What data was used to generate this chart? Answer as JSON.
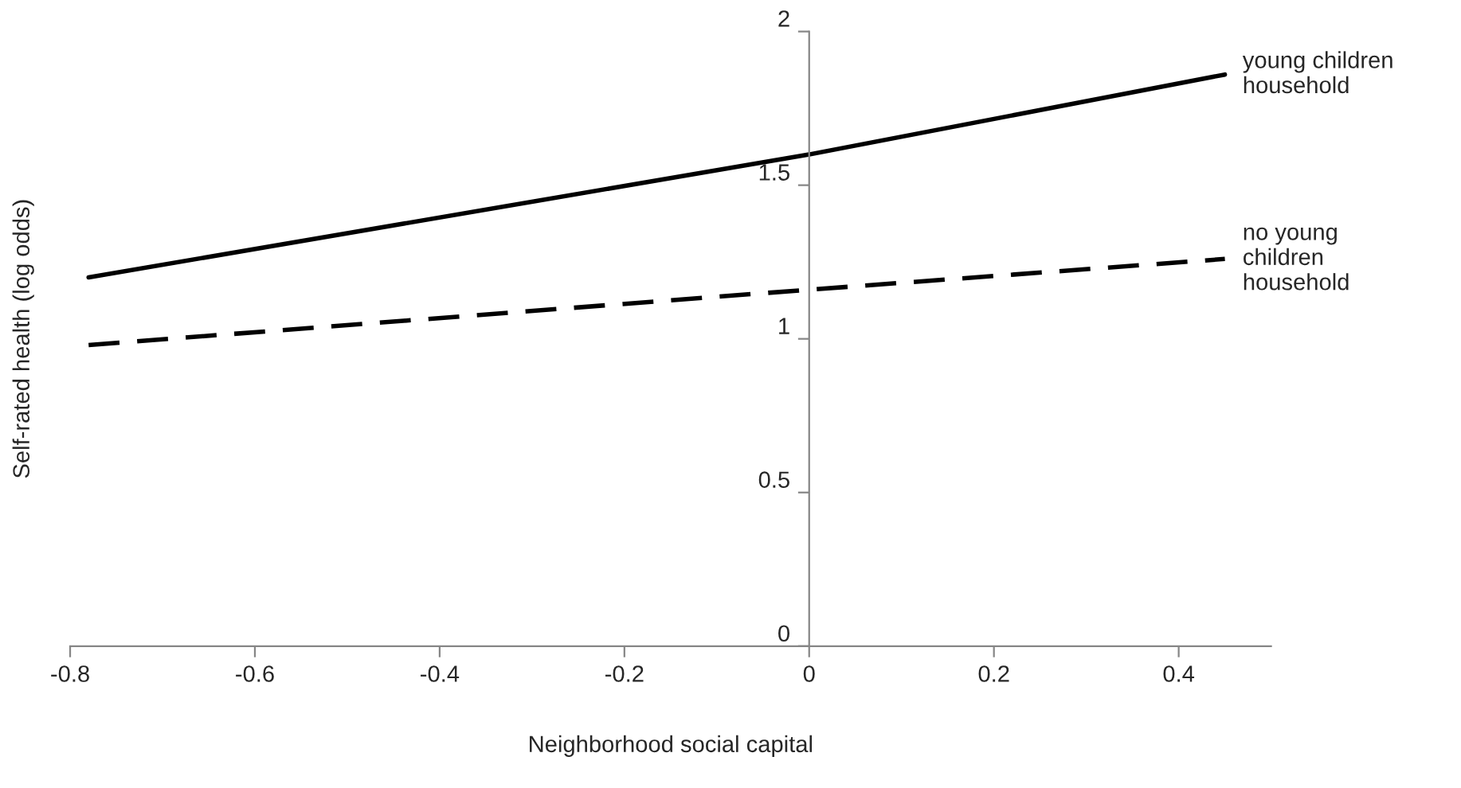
{
  "chart_data": {
    "type": "line",
    "xlabel": "Neighborhood social capital",
    "ylabel": "Self-rated health (log odds)",
    "x": [
      -0.78,
      0,
      0.45
    ],
    "series": [
      {
        "name": "young children\nhousehold",
        "color": "#000000",
        "line_style": "solid",
        "values": [
          1.2,
          1.6,
          1.86
        ]
      },
      {
        "name": "no young\nchildren\nhousehold",
        "color": "#000000",
        "line_style": "dashed",
        "values": [
          0.98,
          1.16,
          1.26
        ]
      }
    ],
    "xlim": [
      -0.8,
      0.5
    ],
    "ylim": [
      0,
      2
    ],
    "xticks": [
      -0.8,
      -0.6,
      -0.4,
      -0.2,
      0,
      0.2,
      0.4
    ],
    "yticks": [
      0,
      0.5,
      1,
      1.5,
      2
    ],
    "grid": false,
    "legend": false,
    "marker": "none"
  }
}
